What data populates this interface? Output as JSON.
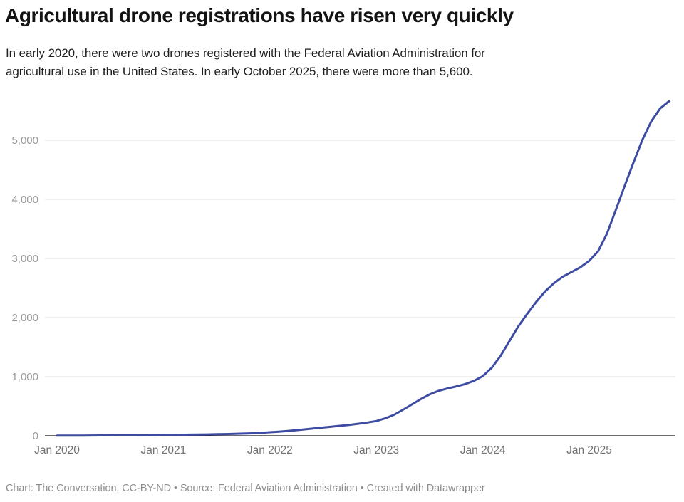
{
  "header": {
    "title": "Agricultural drone registrations have risen very quickly",
    "subtitle_lines": [
      "In early 2020, there were two drones registered with the Federal Aviation Administration for",
      "agricultural use in the United States. In early October 2025, there were more than 5,600."
    ]
  },
  "footer": {
    "text": "Chart: The Conversation, CC-BY-ND • Source: Federal Aviation Administration • Created with Datawrapper"
  },
  "chart_data": {
    "type": "line",
    "title": "Agricultural drone registrations",
    "xlabel": "",
    "ylabel": "",
    "grid": "horizontal",
    "legend_position": "none",
    "line_color": "#3d4ba3",
    "grid_color": "#e2e2e2",
    "axis_color": "#151515",
    "y_axis": {
      "range": [
        0,
        5660
      ],
      "ticks": [
        0,
        1000,
        2000,
        3000,
        4000,
        5000
      ],
      "tick_labels": [
        "0",
        "1,000",
        "2,000",
        "3,000",
        "4,000",
        "5,000"
      ]
    },
    "x_axis": {
      "range": [
        "2020-01",
        "2025-10"
      ],
      "ticks": [
        "2020-01",
        "2021-01",
        "2022-01",
        "2023-01",
        "2024-01",
        "2025-01"
      ],
      "tick_labels": [
        "Jan 2020",
        "Jan 2021",
        "Jan 2022",
        "Jan 2023",
        "Jan 2024",
        "Jan 2025"
      ]
    },
    "months": [
      "2020-01",
      "2020-02",
      "2020-03",
      "2020-04",
      "2020-05",
      "2020-06",
      "2020-07",
      "2020-08",
      "2020-09",
      "2020-10",
      "2020-11",
      "2020-12",
      "2021-01",
      "2021-02",
      "2021-03",
      "2021-04",
      "2021-05",
      "2021-06",
      "2021-07",
      "2021-08",
      "2021-09",
      "2021-10",
      "2021-11",
      "2021-12",
      "2022-01",
      "2022-02",
      "2022-03",
      "2022-04",
      "2022-05",
      "2022-06",
      "2022-07",
      "2022-08",
      "2022-09",
      "2022-10",
      "2022-11",
      "2022-12",
      "2023-01",
      "2023-02",
      "2023-03",
      "2023-04",
      "2023-05",
      "2023-06",
      "2023-07",
      "2023-08",
      "2023-09",
      "2023-10",
      "2023-11",
      "2023-12",
      "2024-01",
      "2024-02",
      "2024-03",
      "2024-04",
      "2024-05",
      "2024-06",
      "2024-07",
      "2024-08",
      "2024-09",
      "2024-10",
      "2024-11",
      "2024-12",
      "2025-01",
      "2025-02",
      "2025-03",
      "2025-04",
      "2025-05",
      "2025-06",
      "2025-07",
      "2025-08",
      "2025-09",
      "2025-10"
    ],
    "values": [
      2,
      2,
      3,
      4,
      5,
      6,
      7,
      8,
      9,
      10,
      11,
      12,
      14,
      15,
      17,
      19,
      21,
      23,
      26,
      29,
      33,
      37,
      42,
      50,
      60,
      70,
      82,
      95,
      110,
      125,
      140,
      155,
      170,
      185,
      205,
      225,
      250,
      295,
      355,
      440,
      530,
      620,
      700,
      760,
      800,
      835,
      875,
      930,
      1010,
      1150,
      1350,
      1600,
      1850,
      2060,
      2260,
      2440,
      2580,
      2690,
      2770,
      2850,
      2960,
      3120,
      3420,
      3820,
      4230,
      4630,
      5010,
      5320,
      5540,
      5660
    ]
  }
}
